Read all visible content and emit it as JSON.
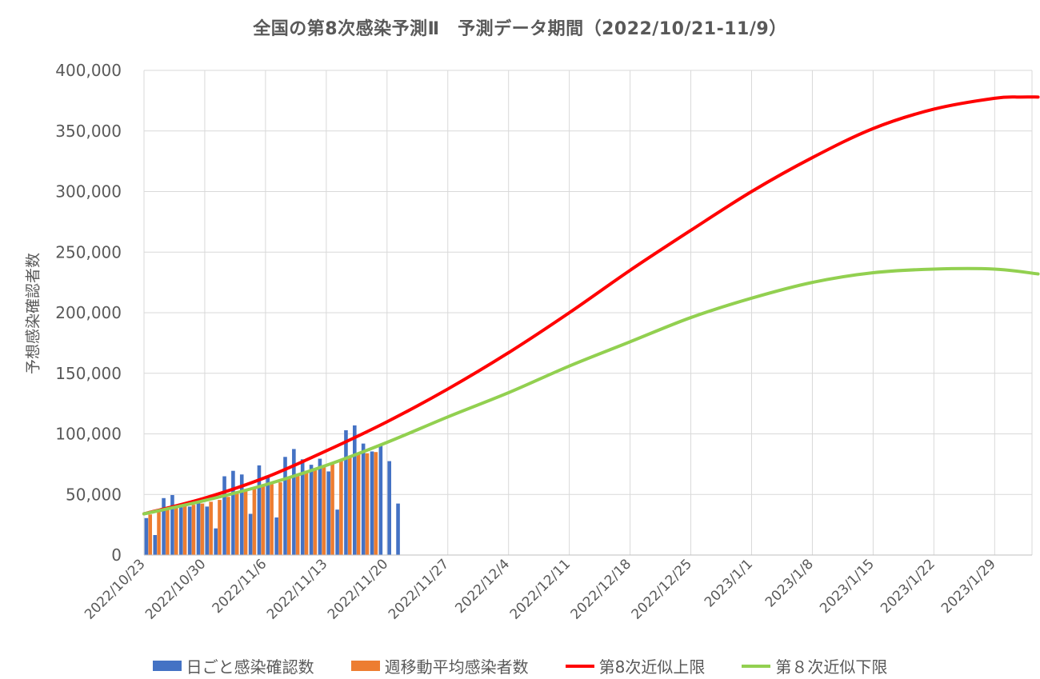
{
  "chart_data": {
    "type": "bar+line",
    "title": "全国の第8次感染予測Ⅱ　予測データ期間（2022/10/21-11/9）",
    "xlabel": "",
    "ylabel": "予想感染確認者数",
    "ylim": [
      0,
      400000
    ],
    "yticks": [
      0,
      50000,
      100000,
      150000,
      200000,
      250000,
      300000,
      350000,
      400000
    ],
    "ytick_labels": [
      "0",
      "50,000",
      "100,000",
      "150,000",
      "200,000",
      "250,000",
      "300,000",
      "350,000",
      "400,000"
    ],
    "x_start": "2022/10/23",
    "x_end": "2023/2/3",
    "xtick_labels": [
      "2022/10/23",
      "2022/10/30",
      "2022/11/6",
      "2022/11/13",
      "2022/11/20",
      "2022/11/27",
      "2022/12/4",
      "2022/12/11",
      "2022/12/18",
      "2022/12/25",
      "2023/1/1",
      "2023/1/8",
      "2023/1/15",
      "2023/1/22",
      "2023/1/29"
    ],
    "grid": true,
    "legend_position": "bottom",
    "bar_series": [
      {
        "name": "日ごと感染確認数",
        "color": "#4472C4",
        "start_date": "2022/10/23",
        "values": [
          30500,
          16500,
          47000,
          49500,
          39500,
          40000,
          43000,
          40000,
          22000,
          65000,
          69500,
          66500,
          34000,
          74000,
          64500,
          31000,
          81000,
          87500,
          79000,
          74500,
          79500,
          69000,
          37500,
          103000,
          107000,
          92000,
          85500,
          90500,
          77500,
          42500
        ]
      },
      {
        "name": "週移動平均感染者数",
        "color": "#ED7D31",
        "start_date": "2022/10/23",
        "values": [
          33500,
          36500,
          38000,
          39500,
          40500,
          41500,
          42500,
          44000,
          45500,
          48000,
          50500,
          53000,
          55000,
          57500,
          58500,
          60000,
          63000,
          66000,
          69500,
          71000,
          73500,
          75000,
          78000,
          80500,
          83000,
          84000,
          85000
        ]
      }
    ],
    "line_series": [
      {
        "name": "第8次近似上限",
        "color": "#FF0000",
        "start_date": "2022/10/23",
        "points": [
          [
            0,
            34000
          ],
          [
            7,
            47000
          ],
          [
            14,
            64000
          ],
          [
            21,
            86000
          ],
          [
            28,
            110000
          ],
          [
            35,
            137000
          ],
          [
            42,
            167000
          ],
          [
            49,
            200000
          ],
          [
            56,
            235000
          ],
          [
            63,
            268000
          ],
          [
            70,
            300000
          ],
          [
            77,
            328000
          ],
          [
            84,
            352000
          ],
          [
            91,
            368000
          ],
          [
            98,
            377000
          ],
          [
            101,
            378000
          ],
          [
            103,
            378000
          ]
        ]
      },
      {
        "name": "第８次近似下限",
        "color": "#92D050",
        "start_date": "2022/10/23",
        "points": [
          [
            0,
            34000
          ],
          [
            7,
            45000
          ],
          [
            14,
            58000
          ],
          [
            21,
            74000
          ],
          [
            28,
            93000
          ],
          [
            35,
            114000
          ],
          [
            42,
            134000
          ],
          [
            49,
            156000
          ],
          [
            56,
            176000
          ],
          [
            63,
            196000
          ],
          [
            70,
            212000
          ],
          [
            77,
            225000
          ],
          [
            84,
            233000
          ],
          [
            91,
            236000
          ],
          [
            98,
            236000
          ],
          [
            103,
            232000
          ]
        ]
      }
    ]
  }
}
